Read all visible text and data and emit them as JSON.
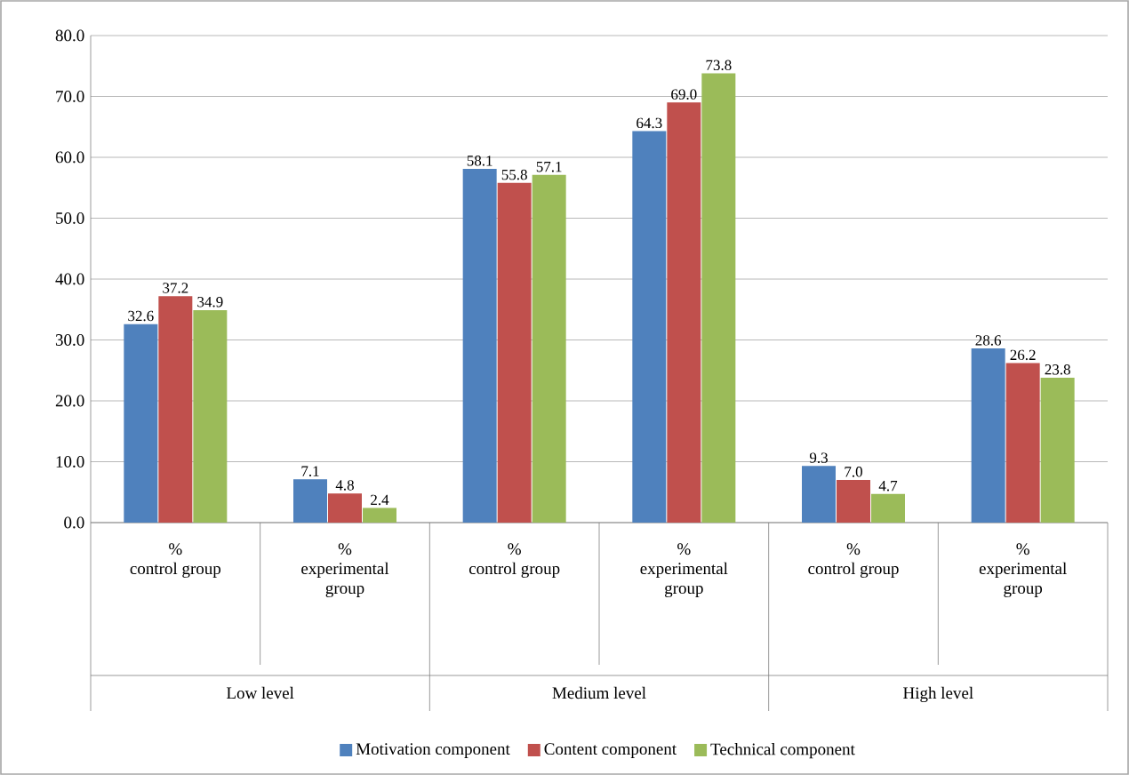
{
  "chart_data": {
    "type": "bar",
    "categories": [
      "% control group",
      "% experimental group",
      "% control group",
      "% experimental group",
      "% control group",
      "% experimental group"
    ],
    "series": [
      {
        "name": "Motivation component",
        "color": "#4f81bd",
        "values": [
          32.6,
          7.1,
          58.1,
          64.3,
          9.3,
          28.6
        ],
        "value_labels": [
          "32.6",
          "7.1",
          "58.1",
          "64.3",
          "9.3",
          "28.6"
        ]
      },
      {
        "name": "Content component",
        "color": "#c0504d",
        "values": [
          37.2,
          4.8,
          55.8,
          69.0,
          7.0,
          26.2
        ],
        "value_labels": [
          "37.2",
          "4.8",
          "55.8",
          "69.0",
          "7.0",
          "26.2"
        ]
      },
      {
        "name": "Technical component",
        "color": "#9bbb59",
        "values": [
          34.9,
          2.4,
          57.1,
          73.8,
          4.7,
          23.8
        ],
        "value_labels": [
          "34.9",
          "2.4",
          "57.1",
          "73.8",
          "4.7",
          "23.8"
        ]
      }
    ],
    "annotations": [
      "Low level",
      "Medium level",
      "High level"
    ],
    "ylim": [
      0,
      80
    ],
    "yticks": [
      {
        "value": 0,
        "label": "0.0"
      },
      {
        "value": 10,
        "label": "10.0"
      },
      {
        "value": 20,
        "label": "20.0"
      },
      {
        "value": 30,
        "label": "30.0"
      },
      {
        "value": 40,
        "label": "40.0"
      },
      {
        "value": 50,
        "label": "50.0"
      },
      {
        "value": 60,
        "label": "60.0"
      },
      {
        "value": 70,
        "label": "70.0"
      },
      {
        "value": 80,
        "label": "80.0"
      }
    ],
    "grid": "y",
    "legend": "bottom"
  }
}
